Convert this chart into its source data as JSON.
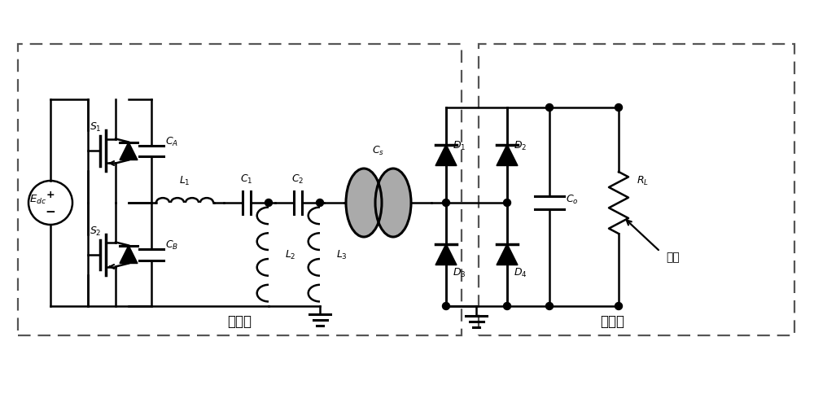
{
  "bg_color": "#ffffff",
  "line_color": "#000000",
  "dashed_box_color": "#666666",
  "gray_fill": "#aaaaaa",
  "tx_label": "发射端",
  "rx_label": "接收端",
  "battery_label": "电池",
  "figsize": [
    10.0,
    4.85
  ],
  "dpi": 100
}
